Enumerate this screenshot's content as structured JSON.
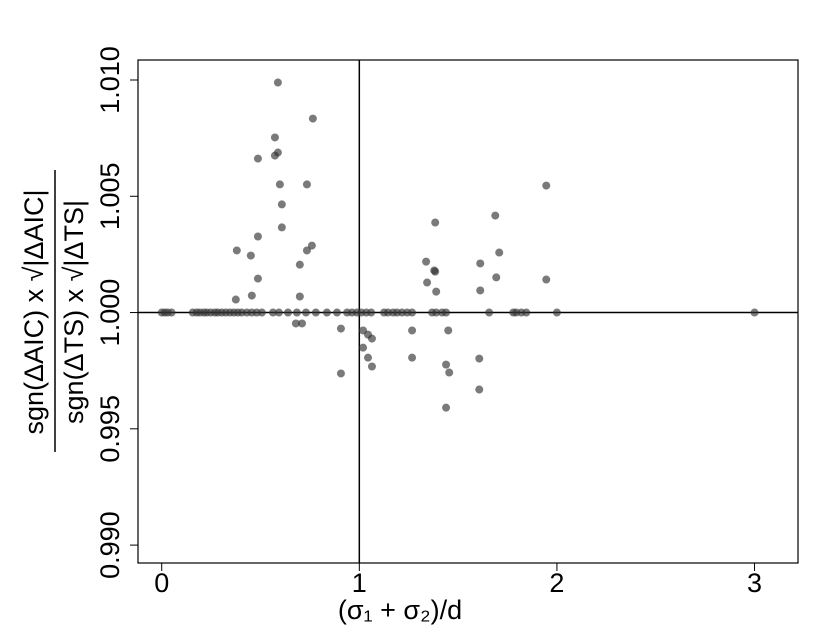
{
  "chart_data": {
    "type": "scatter",
    "xlabel": "(σ₁ + σ₂)/d",
    "ylabel_numerator": "sgn(ΔAIC) x √|ΔAIC|",
    "ylabel_denominator": "sgn(ΔTS) x √|ΔTS|",
    "xlim": [
      -0.12,
      3.22
    ],
    "ylim": [
      0.98923,
      1.01086
    ],
    "xticks": [
      0,
      1,
      2,
      3
    ],
    "yticks": [
      {
        "value": 0.99,
        "label": "0.990"
      },
      0.995,
      {
        "value": 1.0,
        "label": "1.000"
      },
      1.005,
      {
        "value": 1.01,
        "label": "1.010"
      }
    ],
    "vline": 1,
    "hline": 1.0,
    "color": "#333333",
    "x": [
      0,
      0.015,
      0.03,
      0.05,
      0.157,
      0.177,
      0.193,
      0.213,
      0.228,
      0.248,
      0.269,
      0.284,
      0.304,
      0.324,
      0.345,
      0.365,
      0.385,
      0.405,
      0.431,
      0.456,
      0.481,
      0.507,
      0.563,
      0.593,
      0.639,
      0.684,
      0.73,
      0.78,
      0.836,
      0.887,
      0.938,
      0.963,
      0.988,
      1.01,
      1.035,
      1.06,
      1.125,
      1.145,
      1.171,
      1.191,
      1.216,
      1.242,
      1.267,
      1.368,
      1.389,
      1.419,
      1.439,
      1.657,
      1.779,
      1.794,
      1.82,
      1.845,
      2.0,
      3.0,
      0.588,
      0.573,
      0.588,
      0.573,
      0.487,
      0.765,
      0.598,
      0.735,
      0.608,
      0.608,
      0.487,
      0.38,
      0.76,
      0.735,
      0.451,
      0.699,
      0.487,
      0.456,
      0.375,
      0.699,
      0.679,
      0.71,
      0.907,
      0.907,
      1.019,
      1.044,
      1.064,
      1.019,
      1.044,
      1.064,
      1.267,
      1.267,
      1.384,
      1.338,
      1.379,
      1.384,
      1.343,
      1.389,
      1.45,
      1.439,
      1.455,
      1.439,
      1.612,
      1.612,
      1.607,
      1.607,
      1.688,
      1.708,
      1.693,
      1.946,
      1.946
    ],
    "y": [
      1.0,
      1.0,
      1.0,
      1.0,
      1.0,
      1.0,
      1.0,
      1.0,
      1.0,
      1.0,
      1.0,
      1.0,
      1.0,
      1.0,
      1.0,
      1.0,
      1.0,
      1.0,
      1.0,
      1.0,
      1.0,
      1.0,
      1.0,
      1.0,
      1.0,
      1.0,
      1.0,
      1.0,
      1.0,
      1.0,
      1.0,
      1.0,
      1.0,
      1.0,
      1.0,
      1.0,
      1.0,
      1.0,
      1.0,
      1.0,
      1.0,
      1.0,
      1.0,
      1.0,
      1.0,
      1.0,
      1.0,
      1.0,
      1.0,
      1.0,
      1.0,
      1.0,
      1.0,
      1.0,
      1.00989,
      1.00753,
      1.00688,
      1.00675,
      1.00662,
      1.00834,
      1.00551,
      1.00551,
      1.00465,
      1.00366,
      1.00327,
      1.00267,
      1.00288,
      1.00267,
      1.00245,
      1.00206,
      1.00146,
      1.00073,
      1.00056,
      1.00069,
      0.99953,
      0.99953,
      0.99931,
      0.99738,
      0.99923,
      0.99905,
      0.99888,
      0.99849,
      0.99806,
      0.99768,
      0.99923,
      0.99806,
      1.00387,
      1.00219,
      1.00181,
      1.00176,
      1.00129,
      1.0009,
      0.99923,
      0.99776,
      0.99742,
      0.99591,
      1.00211,
      1.00095,
      0.99802,
      0.99669,
      1.00417,
      1.00258,
      1.00151,
      1.00546,
      1.00142
    ]
  }
}
